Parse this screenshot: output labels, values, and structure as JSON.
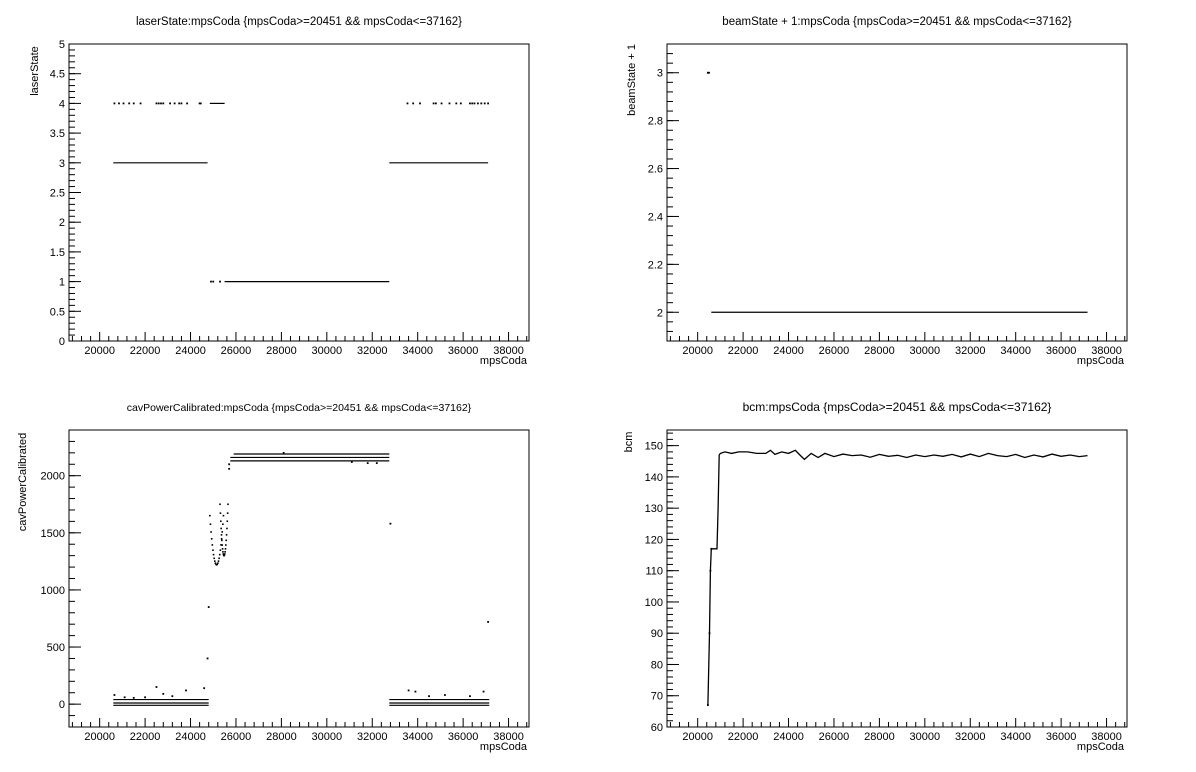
{
  "chart_data": [
    {
      "type": "scatter",
      "title": "laserState:mpsCoda {mpsCoda>=20451 && mpsCoda<=37162}",
      "xlabel": "mpsCoda",
      "ylabel": "laserState",
      "xlim": [
        18650,
        38900
      ],
      "ylim": [
        0,
        5
      ],
      "xticks": [
        "20000",
        "22000",
        "24000",
        "26000",
        "28000",
        "30000",
        "32000",
        "34000",
        "36000",
        "38000"
      ],
      "xtick_values": [
        20000,
        22000,
        24000,
        26000,
        28000,
        30000,
        32000,
        34000,
        36000,
        38000
      ],
      "yticks": [
        "0",
        "0.5",
        "1",
        "1.5",
        "2",
        "2.5",
        "3",
        "3.5",
        "4",
        "4.5",
        "5"
      ],
      "ytick_values": [
        0,
        0.5,
        1,
        1.5,
        2,
        2.5,
        3,
        3.5,
        4,
        4.5,
        5
      ],
      "segments": [
        {
          "x": [
            20600,
            24750
          ],
          "y": 3
        },
        {
          "x": [
            32750,
            37100
          ],
          "y": 3
        },
        {
          "x": [
            25500,
            32750
          ],
          "y": 1
        },
        {
          "x": [
            24850,
            25500
          ],
          "y": 4
        }
      ],
      "points": [
        [
          20650,
          4
        ],
        [
          20850,
          4
        ],
        [
          21050,
          4
        ],
        [
          21300,
          4
        ],
        [
          21500,
          4
        ],
        [
          21800,
          4
        ],
        [
          22500,
          4
        ],
        [
          22600,
          4
        ],
        [
          22700,
          4
        ],
        [
          22800,
          4
        ],
        [
          23100,
          4
        ],
        [
          23300,
          4
        ],
        [
          23500,
          4
        ],
        [
          23600,
          4
        ],
        [
          23850,
          4
        ],
        [
          24400,
          4
        ],
        [
          24450,
          4
        ],
        [
          33550,
          4
        ],
        [
          33800,
          4
        ],
        [
          34100,
          4
        ],
        [
          34700,
          4
        ],
        [
          34800,
          4
        ],
        [
          35050,
          4
        ],
        [
          35400,
          4
        ],
        [
          35700,
          4
        ],
        [
          35900,
          4
        ],
        [
          36300,
          4
        ],
        [
          36400,
          4
        ],
        [
          36500,
          4
        ],
        [
          36650,
          4
        ],
        [
          36800,
          4
        ],
        [
          36950,
          4
        ],
        [
          37100,
          4
        ],
        [
          24900,
          1
        ],
        [
          25000,
          1
        ],
        [
          25300,
          1
        ]
      ]
    },
    {
      "type": "scatter",
      "title": "beamState + 1:mpsCoda {mpsCoda>=20451 && mpsCoda<=37162}",
      "xlabel": "mpsCoda",
      "ylabel": "beamState + 1",
      "xlim": [
        18650,
        38900
      ],
      "ylim": [
        1.88,
        3.12
      ],
      "xticks": [
        "20000",
        "22000",
        "24000",
        "26000",
        "28000",
        "30000",
        "32000",
        "34000",
        "36000",
        "38000"
      ],
      "xtick_values": [
        20000,
        22000,
        24000,
        26000,
        28000,
        30000,
        32000,
        34000,
        36000,
        38000
      ],
      "yticks": [
        "2",
        "2.2",
        "2.4",
        "2.6",
        "2.8",
        "3"
      ],
      "ytick_values": [
        2,
        2.2,
        2.4,
        2.6,
        2.8,
        3
      ],
      "segments": [
        {
          "x": [
            20600,
            37162
          ],
          "y": 2
        }
      ],
      "points": [
        [
          20450,
          3
        ],
        [
          20500,
          3
        ]
      ]
    },
    {
      "type": "scatter",
      "title": "cavPowerCalibrated:mpsCoda {mpsCoda>=20451 && mpsCoda<=37162}",
      "xlabel": "mpsCoda",
      "ylabel": "cavPowerCalibrated",
      "xlim": [
        18650,
        38900
      ],
      "ylim": [
        -200,
        2400
      ],
      "xticks": [
        "20000",
        "22000",
        "24000",
        "26000",
        "28000",
        "30000",
        "32000",
        "34000",
        "36000",
        "38000"
      ],
      "xtick_values": [
        20000,
        22000,
        24000,
        26000,
        28000,
        30000,
        32000,
        34000,
        36000,
        38000
      ],
      "yticks": [
        "0",
        "500",
        "1000",
        "1500",
        "2000"
      ],
      "ytick_values": [
        0,
        500,
        1000,
        1500,
        2000
      ],
      "segments": [
        {
          "x": [
            20600,
            24800
          ],
          "y": 40
        },
        {
          "x": [
            20600,
            24800
          ],
          "y": 10
        },
        {
          "x": [
            20600,
            24800
          ],
          "y": -10
        },
        {
          "x": [
            32750,
            37150
          ],
          "y": 40
        },
        {
          "x": [
            32750,
            37150
          ],
          "y": 10
        },
        {
          "x": [
            32750,
            37150
          ],
          "y": -10
        },
        {
          "x": [
            25750,
            32750
          ],
          "y": 2160
        },
        {
          "x": [
            25750,
            32750
          ],
          "y": 2130
        },
        {
          "x": [
            25900,
            32750
          ],
          "y": 2190
        }
      ],
      "points": [
        [
          20650,
          80
        ],
        [
          21100,
          60
        ],
        [
          21500,
          55
        ],
        [
          22000,
          60
        ],
        [
          22500,
          150
        ],
        [
          22800,
          90
        ],
        [
          23200,
          70
        ],
        [
          23800,
          120
        ],
        [
          24600,
          140
        ],
        [
          24750,
          400
        ],
        [
          24800,
          850
        ],
        [
          32800,
          1580
        ],
        [
          37100,
          720
        ],
        [
          33600,
          120
        ],
        [
          33900,
          110
        ],
        [
          34500,
          70
        ],
        [
          35200,
          80
        ],
        [
          36300,
          70
        ],
        [
          36900,
          110
        ],
        [
          25700,
          2060
        ],
        [
          25700,
          2100
        ],
        [
          28100,
          2200
        ],
        [
          31100,
          2120
        ],
        [
          31800,
          2110
        ],
        [
          32200,
          2110
        ]
      ],
      "u_shapes": [
        {
          "x_left": 24850,
          "x_right": 25450,
          "y_top": 1650,
          "y_bottom": 1220
        },
        {
          "x_left": 25300,
          "x_right": 25650,
          "y_top": 1750,
          "y_bottom": 1300
        }
      ]
    },
    {
      "type": "line",
      "title": "bcm:mpsCoda {mpsCoda>=20451 && mpsCoda<=37162}",
      "xlabel": "mpsCoda",
      "ylabel": "bcm",
      "xlim": [
        18650,
        38900
      ],
      "ylim": [
        60,
        155
      ],
      "xticks": [
        "20000",
        "22000",
        "24000",
        "26000",
        "28000",
        "30000",
        "32000",
        "34000",
        "36000",
        "38000"
      ],
      "xtick_values": [
        20000,
        22000,
        24000,
        26000,
        28000,
        30000,
        32000,
        34000,
        36000,
        38000
      ],
      "yticks": [
        "60",
        "70",
        "80",
        "90",
        "100",
        "110",
        "120",
        "130",
        "140",
        "150"
      ],
      "ytick_values": [
        60,
        70,
        80,
        90,
        100,
        110,
        120,
        130,
        140,
        150
      ],
      "x": [
        20451,
        20520,
        20560,
        20600,
        20650,
        20700,
        20750,
        20800,
        20850,
        20900,
        20950,
        21000,
        21200,
        21500,
        21800,
        22200,
        22600,
        23000,
        23200,
        23400,
        23700,
        24000,
        24300,
        24500,
        24700,
        25000,
        25300,
        25600,
        26000,
        26400,
        26800,
        27200,
        27600,
        28000,
        28400,
        28800,
        29200,
        29600,
        30000,
        30400,
        30800,
        31200,
        31600,
        32000,
        32400,
        32800,
        33200,
        33600,
        34000,
        34400,
        34800,
        35200,
        35600,
        36000,
        36400,
        36800,
        37162
      ],
      "y": [
        67,
        90,
        110,
        117,
        117,
        117,
        117,
        117,
        117,
        130,
        147,
        147.5,
        148,
        147.5,
        148,
        148,
        147.5,
        147.5,
        148.5,
        147.2,
        148,
        147.5,
        148.5,
        147,
        145.6,
        147.5,
        146.2,
        147.5,
        146.5,
        147.3,
        146.8,
        147,
        146.3,
        147.2,
        146.6,
        146.9,
        146.2,
        147,
        146.5,
        147,
        146.6,
        147.2,
        146.4,
        147.3,
        146.5,
        147.5,
        146.8,
        146.5,
        147.2,
        146.2,
        147,
        146.4,
        147.3,
        146.6,
        147,
        146.5,
        146.8
      ]
    }
  ]
}
